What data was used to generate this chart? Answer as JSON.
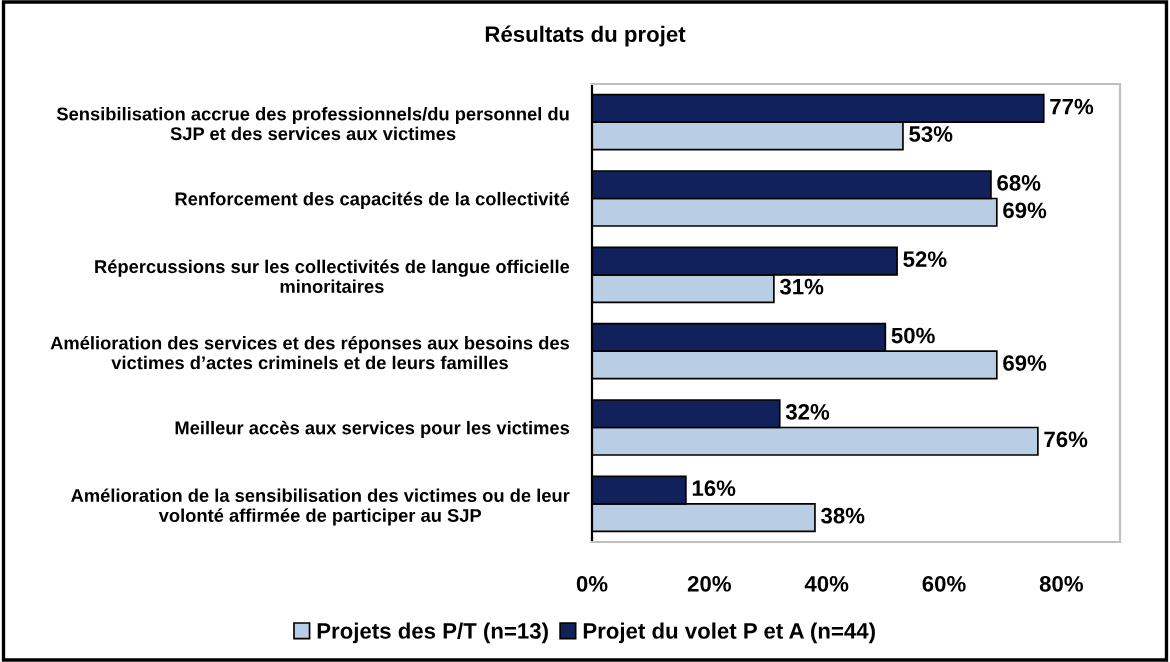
{
  "chart_data": {
    "type": "bar",
    "orientation": "horizontal",
    "title": "Résultats du projet",
    "categories": [
      "Sensibilisation accrue des professionnels/du personnel du\nSJP et des services aux victimes",
      "Renforcement des capacités de la collectivité",
      "Répercussions sur les collectivités de langue officielle\nminoritaires",
      "Amélioration des services et des réponses aux besoins des\nvictimes d’actes criminels et de leurs familles",
      "Meilleur accès aux services pour les victimes",
      "Amélioration de la sensibilisation des victimes ou de leur\nvolonté affirmée de participer au SJP"
    ],
    "series": [
      {
        "name": "Projets des P/T (n=13)",
        "color": "#b9cde5",
        "values": [
          53,
          69,
          31,
          69,
          76,
          38
        ]
      },
      {
        "name": "Projet du volet P et A (n=44)",
        "color": "#10215c",
        "values": [
          77,
          68,
          52,
          50,
          32,
          16
        ]
      }
    ],
    "xlim": [
      0,
      90
    ],
    "xticks": [
      {
        "value": 0,
        "label": "0%"
      },
      {
        "value": 20,
        "label": "20%"
      },
      {
        "value": 40,
        "label": "40%"
      },
      {
        "value": 60,
        "label": "60%"
      },
      {
        "value": 80,
        "label": "80%"
      }
    ],
    "value_labels": [
      [
        "53%",
        "69%",
        "31%",
        "69%",
        "76%",
        "38%"
      ],
      [
        "77%",
        "68%",
        "52%",
        "50%",
        "32%",
        "16%"
      ]
    ],
    "grid": false,
    "legend": "bottom"
  }
}
